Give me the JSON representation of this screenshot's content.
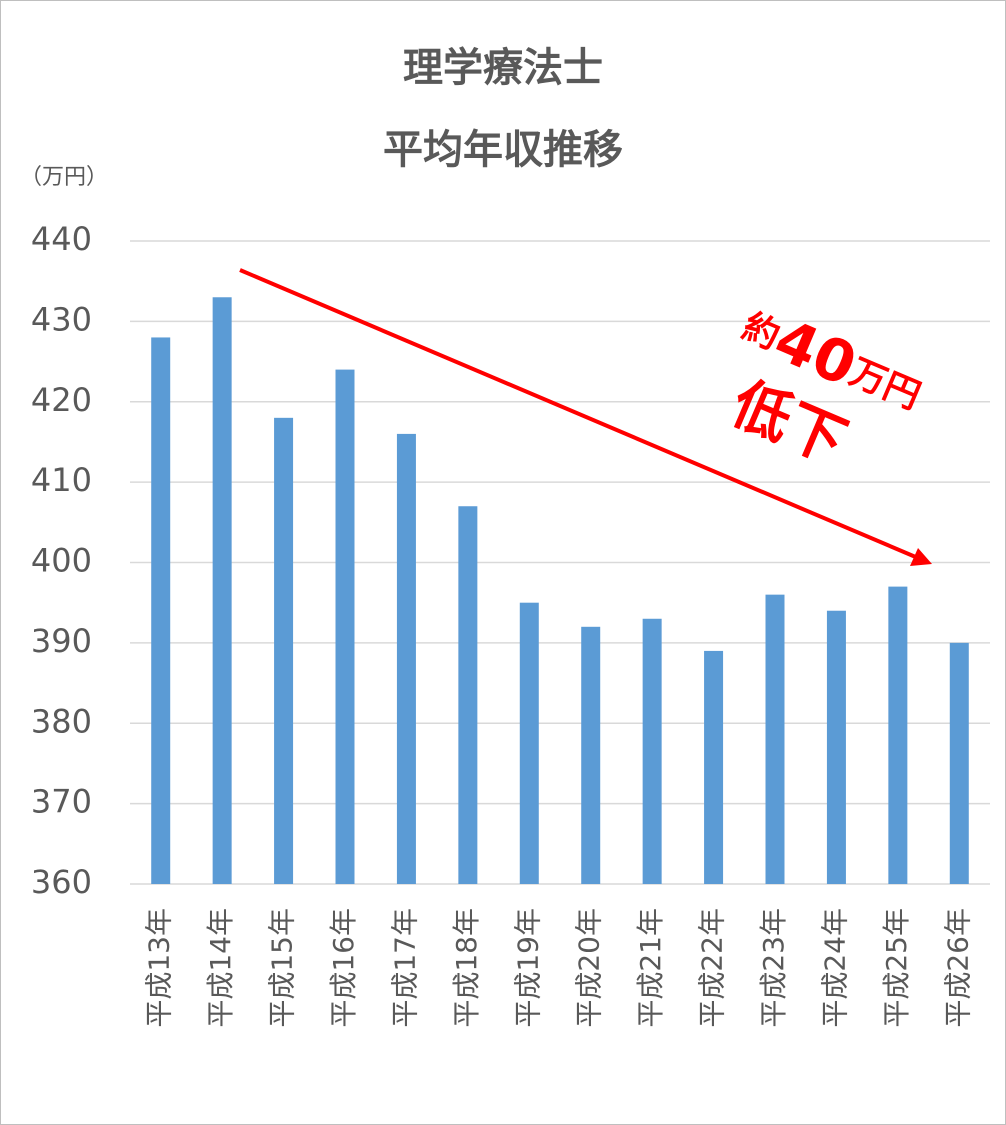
{
  "chart_data": {
    "type": "bar",
    "title": [
      "理学療法士",
      "平均年収推移"
    ],
    "y_label": "（万円）",
    "categories": [
      "平成13年",
      "平成14年",
      "平成15年",
      "平成16年",
      "平成17年",
      "平成18年",
      "平成19年",
      "平成20年",
      "平成21年",
      "平成22年",
      "平成23年",
      "平成24年",
      "平成25年",
      "平成26年"
    ],
    "values": [
      428,
      433,
      418,
      424,
      416,
      407,
      395,
      392,
      393,
      389,
      396,
      394,
      397,
      390
    ],
    "color": "#5b9bd5",
    "ylim": [
      360,
      440
    ],
    "yticks": [
      360,
      370,
      380,
      390,
      400,
      410,
      420,
      430,
      440
    ],
    "grid": true,
    "annotation": [
      "約",
      "40",
      "万円",
      "低下"
    ],
    "annotation_color": "#ff0000"
  }
}
